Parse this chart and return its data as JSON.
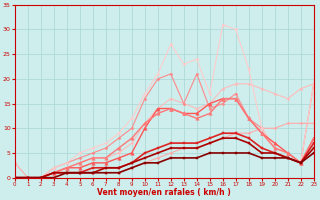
{
  "xlabel": "Vent moyen/en rafales ( km/h )",
  "xlim": [
    0,
    23
  ],
  "ylim": [
    0,
    35
  ],
  "yticks": [
    0,
    5,
    10,
    15,
    20,
    25,
    30,
    35
  ],
  "xticks": [
    0,
    1,
    2,
    3,
    4,
    5,
    6,
    7,
    8,
    9,
    10,
    11,
    12,
    13,
    14,
    15,
    16,
    17,
    18,
    19,
    20,
    21,
    22,
    23
  ],
  "bg_color": "#cdeeed",
  "grid_color": "#a8d5d3",
  "series": [
    {
      "x": [
        0,
        1,
        2,
        3,
        4,
        5,
        6,
        7,
        8,
        9,
        10,
        11,
        12,
        13,
        14,
        15,
        16,
        17,
        18,
        19,
        20,
        21,
        22,
        23
      ],
      "y": [
        3,
        0,
        0,
        1,
        1,
        1,
        1,
        1,
        1,
        2,
        3,
        4,
        5,
        6,
        6,
        7,
        8,
        9,
        9,
        10,
        10,
        11,
        11,
        11
      ],
      "color": "#ffaaaa",
      "marker": "D",
      "markersize": 1.5,
      "linewidth": 0.8
    },
    {
      "x": [
        0,
        1,
        2,
        3,
        4,
        5,
        6,
        7,
        8,
        9,
        10,
        11,
        12,
        13,
        14,
        15,
        16,
        17,
        18,
        19,
        20,
        21,
        22,
        23
      ],
      "y": [
        0,
        0,
        0,
        1,
        2,
        3,
        4,
        4,
        5,
        7,
        11,
        14,
        16,
        15,
        14,
        15,
        18,
        19,
        19,
        18,
        17,
        16,
        18,
        19
      ],
      "color": "#ffbbbb",
      "marker": "D",
      "markersize": 1.5,
      "linewidth": 0.8
    },
    {
      "x": [
        0,
        1,
        2,
        3,
        4,
        5,
        6,
        7,
        8,
        9,
        10,
        11,
        12,
        13,
        14,
        15,
        16,
        17,
        18,
        19,
        20,
        21,
        22,
        23
      ],
      "y": [
        0,
        0,
        0,
        2,
        3,
        4,
        5,
        6,
        8,
        10,
        16,
        20,
        21,
        15,
        21,
        14,
        15,
        17,
        12,
        10,
        6,
        5,
        3,
        19
      ],
      "color": "#ff8888",
      "marker": "D",
      "markersize": 1.5,
      "linewidth": 0.8
    },
    {
      "x": [
        0,
        1,
        2,
        3,
        4,
        5,
        6,
        7,
        8,
        9,
        10,
        11,
        12,
        13,
        14,
        15,
        16,
        17,
        18,
        19,
        20,
        21,
        22,
        23
      ],
      "y": [
        0,
        0,
        0,
        2,
        3,
        5,
        6,
        7,
        9,
        12,
        17,
        21,
        27,
        23,
        24,
        17,
        31,
        30,
        22,
        10,
        6,
        5,
        3,
        19
      ],
      "color": "#ffcccc",
      "marker": "D",
      "markersize": 1.5,
      "linewidth": 0.8
    },
    {
      "x": [
        0,
        1,
        2,
        3,
        4,
        5,
        6,
        7,
        8,
        9,
        10,
        11,
        12,
        13,
        14,
        15,
        16,
        17,
        18,
        19,
        20,
        21,
        22,
        23
      ],
      "y": [
        0,
        0,
        0,
        1,
        2,
        2,
        3,
        3,
        4,
        5,
        10,
        14,
        14,
        13,
        13,
        15,
        16,
        16,
        12,
        9,
        7,
        5,
        3,
        8
      ],
      "color": "#ff5555",
      "marker": "^",
      "markersize": 2.5,
      "linewidth": 1.0
    },
    {
      "x": [
        0,
        1,
        2,
        3,
        4,
        5,
        6,
        7,
        8,
        9,
        10,
        11,
        12,
        13,
        14,
        15,
        16,
        17,
        18,
        19,
        20,
        21,
        22,
        23
      ],
      "y": [
        0,
        0,
        0,
        1,
        2,
        3,
        4,
        4,
        6,
        8,
        11,
        13,
        14,
        13,
        12,
        13,
        16,
        16,
        12,
        9,
        6,
        5,
        3,
        8
      ],
      "color": "#ff7777",
      "marker": "^",
      "markersize": 2.5,
      "linewidth": 1.0
    },
    {
      "x": [
        0,
        1,
        2,
        3,
        4,
        5,
        6,
        7,
        8,
        9,
        10,
        11,
        12,
        13,
        14,
        15,
        16,
        17,
        18,
        19,
        20,
        21,
        22,
        23
      ],
      "y": [
        0,
        0,
        0,
        1,
        1,
        1,
        2,
        2,
        2,
        3,
        5,
        6,
        7,
        7,
        7,
        8,
        9,
        9,
        8,
        6,
        5,
        4,
        3,
        7
      ],
      "color": "#dd2222",
      "marker": "s",
      "markersize": 2,
      "linewidth": 1.2
    },
    {
      "x": [
        0,
        1,
        2,
        3,
        4,
        5,
        6,
        7,
        8,
        9,
        10,
        11,
        12,
        13,
        14,
        15,
        16,
        17,
        18,
        19,
        20,
        21,
        22,
        23
      ],
      "y": [
        0,
        0,
        0,
        1,
        1,
        1,
        1,
        2,
        2,
        3,
        4,
        5,
        6,
        6,
        6,
        7,
        8,
        8,
        7,
        5,
        5,
        4,
        3,
        6
      ],
      "color": "#aa0000",
      "marker": "s",
      "markersize": 2,
      "linewidth": 1.2
    },
    {
      "x": [
        0,
        1,
        2,
        3,
        4,
        5,
        6,
        7,
        8,
        9,
        10,
        11,
        12,
        13,
        14,
        15,
        16,
        17,
        18,
        19,
        20,
        21,
        22,
        23
      ],
      "y": [
        0,
        0,
        0,
        0,
        1,
        1,
        1,
        1,
        1,
        2,
        3,
        3,
        4,
        4,
        4,
        5,
        5,
        5,
        5,
        4,
        4,
        4,
        3,
        5
      ],
      "color": "#880000",
      "marker": "s",
      "markersize": 2,
      "linewidth": 1.2
    }
  ]
}
